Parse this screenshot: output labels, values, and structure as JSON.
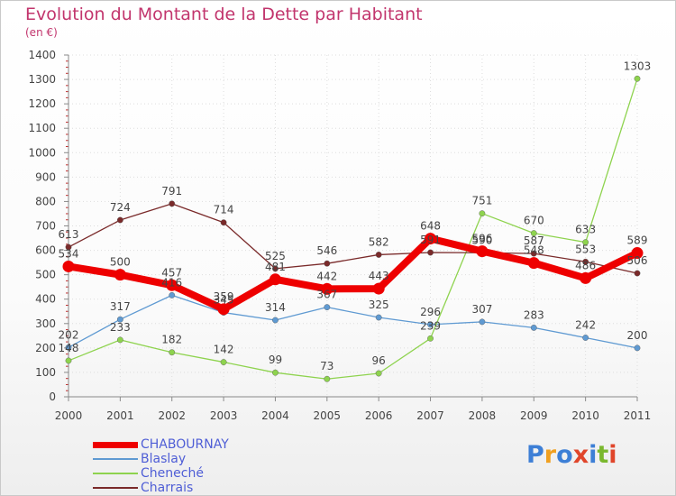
{
  "title": "Evolution du Montant de la Dette par Habitant",
  "subtitle": "(en €)",
  "logo": {
    "text": "Proxiti",
    "letters": [
      "P",
      "r",
      "o",
      "x",
      "i",
      "t",
      "i"
    ],
    "colors": [
      "#3d7fd6",
      "#f0a020",
      "#3d7fd6",
      "#e0452a",
      "#3d7fd6",
      "#7ab82e",
      "#e0452a"
    ]
  },
  "colors": {
    "title": "#c2356d",
    "axis": "#8a8a8a",
    "grid": "#dddddd",
    "legend_text": "#4f5ed6"
  },
  "chart_data": {
    "type": "line",
    "title": "Evolution du Montant de la Dette par Habitant",
    "subtitle": "(en €)",
    "xlabel": "",
    "ylabel": "",
    "ylim": [
      0,
      1400
    ],
    "yticks": [
      0,
      100,
      200,
      300,
      400,
      500,
      600,
      700,
      800,
      900,
      1000,
      1100,
      1200,
      1300,
      1400
    ],
    "x": [
      "2000",
      "2001",
      "2002",
      "2003",
      "2004",
      "2005",
      "2006",
      "2007",
      "2008",
      "2009",
      "2010",
      "2011"
    ],
    "grid": true,
    "legend_position": "bottom-left",
    "series": [
      {
        "name": "CHABOURNAY",
        "color": "#ee0000",
        "emphasis": true,
        "values": [
          534,
          500,
          457,
          359,
          481,
          442,
          443,
          648,
          596,
          548,
          486,
          589
        ],
        "labels": [
          "534",
          "500",
          "457",
          "359",
          "481",
          "442",
          "443",
          "648",
          "596",
          "548",
          "486",
          "589"
        ]
      },
      {
        "name": "Blaslay",
        "color": "#5f9ad2",
        "emphasis": false,
        "values": [
          202,
          317,
          416,
          345,
          314,
          367,
          325,
          296,
          307,
          283,
          242,
          200
        ],
        "labels": [
          "202",
          "317",
          "416",
          "345",
          "314",
          "367",
          "325",
          "296",
          "307",
          "283",
          "242",
          "200"
        ]
      },
      {
        "name": "Cheneché",
        "color": "#8ed34e",
        "emphasis": false,
        "values": [
          148,
          233,
          182,
          142,
          99,
          73,
          96,
          239,
          751,
          670,
          633,
          1303
        ],
        "labels": [
          "148",
          "233",
          "182",
          "142",
          "99",
          "73",
          "96",
          "239",
          "751",
          "670",
          "633",
          "1303"
        ]
      },
      {
        "name": "Charrais",
        "color": "#7a2a2a",
        "emphasis": false,
        "values": [
          613,
          724,
          791,
          714,
          525,
          546,
          582,
          591,
          590,
          587,
          553,
          506
        ],
        "labels": [
          "613",
          "724",
          "791",
          "714",
          "525",
          "546",
          "582",
          "591",
          "590",
          "587",
          "553",
          "506"
        ]
      }
    ]
  },
  "legend": [
    {
      "label": "CHABOURNAY",
      "color": "#ee0000",
      "thick": true
    },
    {
      "label": "Blaslay",
      "color": "#5f9ad2",
      "thick": false
    },
    {
      "label": "Cheneché",
      "color": "#8ed34e",
      "thick": false
    },
    {
      "label": "Charrais",
      "color": "#7a2a2a",
      "thick": false
    }
  ]
}
